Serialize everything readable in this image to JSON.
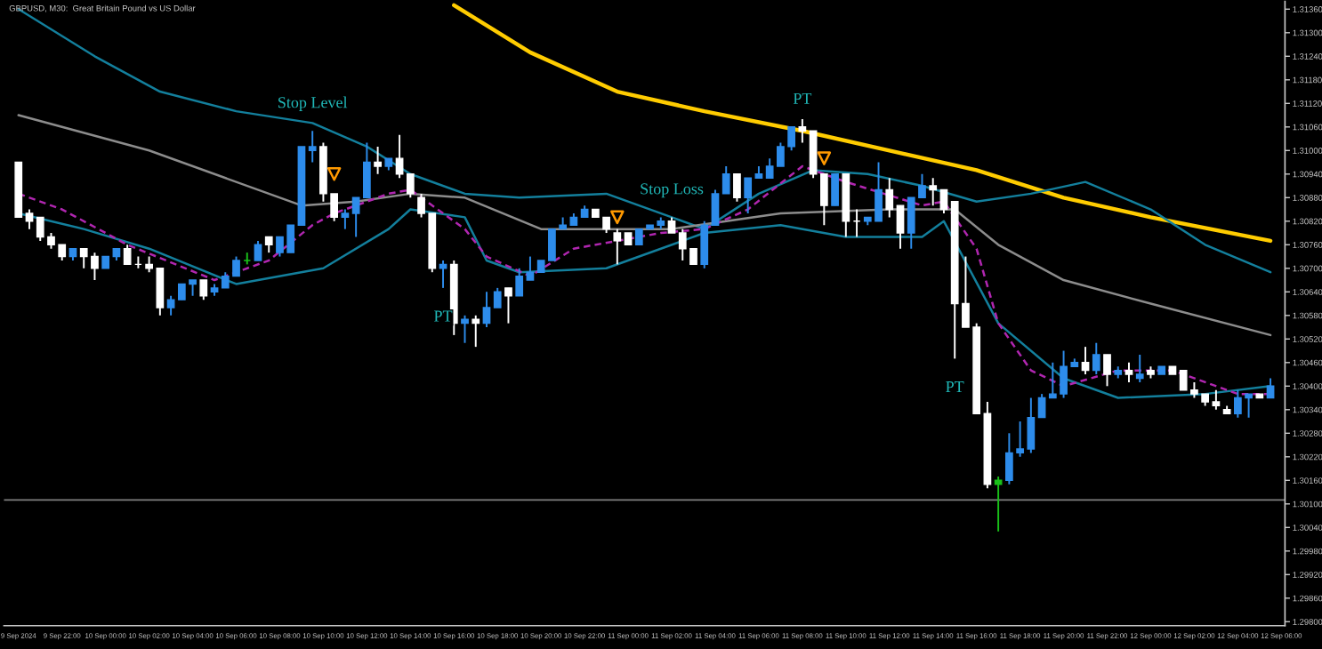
{
  "chart_data": {
    "type": "candlestick",
    "title": "GBPUSD, M30:  Great Britain Pound vs US Dollar",
    "x": [
      "2024-09-09T20:00",
      "2024-09-09T20:30",
      "2024-09-09T21:00",
      "2024-09-09T21:30",
      "2024-09-09T22:00",
      "2024-09-09T22:30",
      "2024-09-09T23:00",
      "2024-09-09T23:30",
      "2024-09-10T00:00",
      "2024-09-10T00:30",
      "2024-09-10T01:00",
      "2024-09-10T01:30",
      "2024-09-10T02:00",
      "2024-09-10T02:30",
      "2024-09-10T03:00",
      "2024-09-10T03:30",
      "2024-09-10T04:00",
      "2024-09-10T04:30",
      "2024-09-10T05:00",
      "2024-09-10T05:30",
      "2024-09-10T06:00",
      "2024-09-10T06:30",
      "2024-09-10T07:00",
      "2024-09-10T07:30",
      "2024-09-10T08:00",
      "2024-09-10T08:30",
      "2024-09-10T09:00",
      "2024-09-10T09:30",
      "2024-09-10T10:00",
      "2024-09-10T10:30",
      "2024-09-10T11:00",
      "2024-09-10T11:30",
      "2024-09-10T12:00",
      "2024-09-10T12:30",
      "2024-09-10T13:00",
      "2024-09-10T13:30",
      "2024-09-10T14:00",
      "2024-09-10T14:30",
      "2024-09-10T15:00",
      "2024-09-10T15:30",
      "2024-09-10T16:00",
      "2024-09-10T16:30",
      "2024-09-10T17:00",
      "2024-09-10T17:30",
      "2024-09-10T18:00",
      "2024-09-10T18:30",
      "2024-09-10T19:00",
      "2024-09-10T19:30",
      "2024-09-10T20:00",
      "2024-09-10T20:30",
      "2024-09-10T21:00",
      "2024-09-10T21:30",
      "2024-09-10T22:00",
      "2024-09-10T22:30",
      "2024-09-10T23:00",
      "2024-09-10T23:30",
      "2024-09-11T00:00",
      "2024-09-11T00:30",
      "2024-09-11T01:00",
      "2024-09-11T01:30",
      "2024-09-11T02:00",
      "2024-09-11T02:30",
      "2024-09-11T03:00",
      "2024-09-11T03:30",
      "2024-09-11T04:00",
      "2024-09-11T04:30",
      "2024-09-11T05:00",
      "2024-09-11T05:30",
      "2024-09-11T06:00",
      "2024-09-11T06:30",
      "2024-09-11T07:00",
      "2024-09-11T07:30",
      "2024-09-11T08:00",
      "2024-09-11T08:30",
      "2024-09-11T09:00",
      "2024-09-11T09:30",
      "2024-09-11T10:00",
      "2024-09-11T10:30",
      "2024-09-11T11:00",
      "2024-09-11T11:30",
      "2024-09-11T12:00",
      "2024-09-11T12:30",
      "2024-09-11T13:00",
      "2024-09-11T13:30",
      "2024-09-11T14:00",
      "2024-09-11T14:30",
      "2024-09-11T15:00",
      "2024-09-11T15:30",
      "2024-09-11T16:00",
      "2024-09-11T16:30",
      "2024-09-11T17:00",
      "2024-09-11T17:30",
      "2024-09-11T18:00",
      "2024-09-11T18:30",
      "2024-09-11T19:00",
      "2024-09-11T19:30",
      "2024-09-11T20:00",
      "2024-09-11T20:30",
      "2024-09-11T21:00",
      "2024-09-11T21:30",
      "2024-09-11T22:00",
      "2024-09-11T22:30",
      "2024-09-11T23:00",
      "2024-09-11T23:30",
      "2024-09-12T00:00",
      "2024-09-12T00:30",
      "2024-09-12T01:00",
      "2024-09-12T01:30",
      "2024-09-12T02:00",
      "2024-09-12T02:30",
      "2024-09-12T03:00",
      "2024-09-12T03:30",
      "2024-09-12T04:00",
      "2024-09-12T04:30",
      "2024-09-12T05:00",
      "2024-09-12T05:30"
    ],
    "ohlc": [
      [
        1.3097,
        1.3097,
        1.3083,
        1.3083
      ],
      [
        1.3084,
        1.3085,
        1.308,
        1.3082
      ],
      [
        1.3083,
        1.3083,
        1.3077,
        1.3078
      ],
      [
        1.3078,
        1.3079,
        1.3075,
        1.3076
      ],
      [
        1.3076,
        1.3076,
        1.3072,
        1.3073
      ],
      [
        1.3073,
        1.3075,
        1.3072,
        1.3075
      ],
      [
        1.3075,
        1.3075,
        1.307,
        1.3073
      ],
      [
        1.3073,
        1.3074,
        1.3067,
        1.307
      ],
      [
        1.307,
        1.3073,
        1.307,
        1.3073
      ],
      [
        1.3073,
        1.3075,
        1.3072,
        1.3075
      ],
      [
        1.3075,
        1.3076,
        1.3071,
        1.3071
      ],
      [
        1.3071,
        1.3073,
        1.307,
        1.3071
      ],
      [
        1.3071,
        1.3073,
        1.3069,
        1.307
      ],
      [
        1.307,
        1.307,
        1.3058,
        1.306
      ],
      [
        1.306,
        1.3063,
        1.3058,
        1.3062
      ],
      [
        1.3062,
        1.3066,
        1.3062,
        1.3066
      ],
      [
        1.3066,
        1.3067,
        1.3063,
        1.3067
      ],
      [
        1.3067,
        1.3067,
        1.3062,
        1.3063
      ],
      [
        1.3064,
        1.3066,
        1.3063,
        1.3065
      ],
      [
        1.3065,
        1.3069,
        1.3065,
        1.3068
      ],
      [
        1.3068,
        1.3073,
        1.3068,
        1.3072
      ],
      [
        1.3072,
        1.3074,
        1.3071,
        1.3072
      ],
      [
        1.3072,
        1.3077,
        1.3072,
        1.3076
      ],
      [
        1.3078,
        1.3078,
        1.3074,
        1.3076
      ],
      [
        1.3074,
        1.3078,
        1.3073,
        1.3078
      ],
      [
        1.3074,
        1.3081,
        1.3074,
        1.3081
      ],
      [
        1.3081,
        1.3101,
        1.3081,
        1.3101
      ],
      [
        1.31,
        1.3105,
        1.3097,
        1.3101
      ],
      [
        1.3101,
        1.3102,
        1.3087,
        1.3089
      ],
      [
        1.3089,
        1.3089,
        1.3082,
        1.3083
      ],
      [
        1.3083,
        1.3085,
        1.308,
        1.3084
      ],
      [
        1.3084,
        1.3088,
        1.3078,
        1.3088
      ],
      [
        1.3088,
        1.3102,
        1.3088,
        1.3097
      ],
      [
        1.3097,
        1.3101,
        1.3094,
        1.3096
      ],
      [
        1.3096,
        1.3098,
        1.3095,
        1.3098
      ],
      [
        1.3098,
        1.3104,
        1.3093,
        1.3094
      ],
      [
        1.3094,
        1.3094,
        1.3088,
        1.3089
      ],
      [
        1.3088,
        1.3089,
        1.3083,
        1.3084
      ],
      [
        1.3084,
        1.3084,
        1.3069,
        1.307
      ],
      [
        1.307,
        1.3072,
        1.3065,
        1.3071
      ],
      [
        1.3071,
        1.3072,
        1.3053,
        1.3056
      ],
      [
        1.3056,
        1.3058,
        1.3051,
        1.3057
      ],
      [
        1.3057,
        1.3058,
        1.305,
        1.3056
      ],
      [
        1.3056,
        1.3064,
        1.3055,
        1.306
      ],
      [
        1.306,
        1.3065,
        1.306,
        1.3064
      ],
      [
        1.3065,
        1.3065,
        1.3056,
        1.3063
      ],
      [
        1.3063,
        1.307,
        1.3063,
        1.3068
      ],
      [
        1.3067,
        1.3073,
        1.3067,
        1.3069
      ],
      [
        1.3069,
        1.3072,
        1.3069,
        1.3072
      ],
      [
        1.3072,
        1.308,
        1.3072,
        1.308
      ],
      [
        1.308,
        1.3083,
        1.308,
        1.3081
      ],
      [
        1.3081,
        1.3084,
        1.3081,
        1.3083
      ],
      [
        1.3083,
        1.3086,
        1.3083,
        1.3085
      ],
      [
        1.3085,
        1.3085,
        1.3083,
        1.3083
      ],
      [
        1.3083,
        1.3083,
        1.3079,
        1.308
      ],
      [
        1.3079,
        1.308,
        1.3071,
        1.3077
      ],
      [
        1.3079,
        1.3079,
        1.3076,
        1.3076
      ],
      [
        1.3076,
        1.308,
        1.3076,
        1.308
      ],
      [
        1.308,
        1.3081,
        1.308,
        1.3081
      ],
      [
        1.3081,
        1.3083,
        1.308,
        1.3082
      ],
      [
        1.3082,
        1.3083,
        1.3079,
        1.3079
      ],
      [
        1.3079,
        1.308,
        1.3072,
        1.3075
      ],
      [
        1.3075,
        1.3075,
        1.3071,
        1.3071
      ],
      [
        1.3071,
        1.3082,
        1.307,
        1.3081
      ],
      [
        1.3081,
        1.309,
        1.3081,
        1.3089
      ],
      [
        1.3089,
        1.3096,
        1.3089,
        1.3094
      ],
      [
        1.3094,
        1.3094,
        1.3087,
        1.3088
      ],
      [
        1.3088,
        1.3093,
        1.3084,
        1.3093
      ],
      [
        1.3093,
        1.3096,
        1.3093,
        1.3094
      ],
      [
        1.3093,
        1.3098,
        1.3093,
        1.3096
      ],
      [
        1.3096,
        1.3102,
        1.3096,
        1.3101
      ],
      [
        1.3101,
        1.3106,
        1.31,
        1.3106
      ],
      [
        1.3106,
        1.3108,
        1.3102,
        1.3105
      ],
      [
        1.3105,
        1.3105,
        1.3093,
        1.3094
      ],
      [
        1.3094,
        1.3094,
        1.3081,
        1.3086
      ],
      [
        1.3086,
        1.3094,
        1.3086,
        1.3094
      ],
      [
        1.3094,
        1.3094,
        1.3078,
        1.3082
      ],
      [
        1.3082,
        1.3085,
        1.3078,
        1.3082
      ],
      [
        1.3082,
        1.3083,
        1.3081,
        1.3083
      ],
      [
        1.3082,
        1.3097,
        1.3082,
        1.309
      ],
      [
        1.309,
        1.3093,
        1.3083,
        1.3085
      ],
      [
        1.3086,
        1.3086,
        1.3075,
        1.3079
      ],
      [
        1.3079,
        1.3088,
        1.3075,
        1.3088
      ],
      [
        1.3088,
        1.3094,
        1.3088,
        1.3091
      ],
      [
        1.3091,
        1.3093,
        1.3086,
        1.309
      ],
      [
        1.309,
        1.309,
        1.3084,
        1.3085
      ],
      [
        1.3087,
        1.3087,
        1.3047,
        1.3061
      ],
      [
        1.3061,
        1.3073,
        1.3055,
        1.3055
      ],
      [
        1.3055,
        1.3056,
        1.3033,
        1.3033
      ],
      [
        1.3033,
        1.3036,
        1.3014,
        1.3015
      ],
      [
        1.3015,
        1.3017,
        1.3003,
        1.3016
      ],
      [
        1.3016,
        1.3028,
        1.3015,
        1.3023
      ],
      [
        1.3023,
        1.3031,
        1.3022,
        1.3024
      ],
      [
        1.3024,
        1.3037,
        1.3023,
        1.3032
      ],
      [
        1.3032,
        1.3038,
        1.3032,
        1.3037
      ],
      [
        1.3037,
        1.3046,
        1.3037,
        1.3038
      ],
      [
        1.3038,
        1.3049,
        1.3037,
        1.3045
      ],
      [
        1.3045,
        1.3047,
        1.3045,
        1.3046
      ],
      [
        1.3046,
        1.305,
        1.3043,
        1.3044
      ],
      [
        1.3044,
        1.3051,
        1.3043,
        1.3048
      ],
      [
        1.3048,
        1.3048,
        1.304,
        1.3043
      ],
      [
        1.3043,
        1.3045,
        1.3042,
        1.3044
      ],
      [
        1.3044,
        1.3046,
        1.3041,
        1.3043
      ],
      [
        1.3042,
        1.3048,
        1.3041,
        1.3043
      ],
      [
        1.3044,
        1.3045,
        1.3042,
        1.3043
      ],
      [
        1.3043,
        1.3045,
        1.3043,
        1.3045
      ],
      [
        1.3045,
        1.3045,
        1.3043,
        1.3043
      ],
      [
        1.3044,
        1.3044,
        1.3039,
        1.3039
      ],
      [
        1.3039,
        1.3041,
        1.3037,
        1.3038
      ],
      [
        1.3038,
        1.3038,
        1.3035,
        1.3036
      ],
      [
        1.3036,
        1.3039,
        1.3034,
        1.3035
      ],
      [
        1.3034,
        1.3035,
        1.3033,
        1.3033
      ],
      [
        1.3033,
        1.3039,
        1.3032,
        1.3037
      ],
      [
        1.3037,
        1.3038,
        1.3032,
        1.3038
      ],
      [
        1.3038,
        1.3038,
        1.3037,
        1.3037
      ],
      [
        1.3037,
        1.3042,
        1.3037,
        1.304
      ]
    ],
    "colors": [
      "#ffffff",
      "#ffffff",
      "#ffffff",
      "#ffffff",
      "#ffffff",
      "#2d8ceb",
      "#ffffff",
      "#ffffff",
      "#2d8ceb",
      "#2d8ceb",
      "#ffffff",
      "#ffffff",
      "#ffffff",
      "#ffffff",
      "#2d8ceb",
      "#2d8ceb",
      "#2d8ceb",
      "#ffffff",
      "#2d8ceb",
      "#2d8ceb",
      "#2d8ceb",
      "#19c019",
      "#2d8ceb",
      "#ffffff",
      "#2d8ceb",
      "#2d8ceb",
      "#2d8ceb",
      "#2d8ceb",
      "#ffffff",
      "#ffffff",
      "#2d8ceb",
      "#2d8ceb",
      "#2d8ceb",
      "#ffffff",
      "#2d8ceb",
      "#ffffff",
      "#ffffff",
      "#ffffff",
      "#ffffff",
      "#2d8ceb",
      "#ffffff",
      "#2d8ceb",
      "#ffffff",
      "#2d8ceb",
      "#2d8ceb",
      "#ffffff",
      "#2d8ceb",
      "#2d8ceb",
      "#2d8ceb",
      "#2d8ceb",
      "#2d8ceb",
      "#2d8ceb",
      "#2d8ceb",
      "#ffffff",
      "#ffffff",
      "#ffffff",
      "#ffffff",
      "#2d8ceb",
      "#2d8ceb",
      "#2d8ceb",
      "#ffffff",
      "#ffffff",
      "#ffffff",
      "#2d8ceb",
      "#2d8ceb",
      "#2d8ceb",
      "#ffffff",
      "#2d8ceb",
      "#2d8ceb",
      "#2d8ceb",
      "#2d8ceb",
      "#2d8ceb",
      "#ffffff",
      "#ffffff",
      "#ffffff",
      "#2d8ceb",
      "#ffffff",
      "#ffffff",
      "#2d8ceb",
      "#2d8ceb",
      "#ffffff",
      "#ffffff",
      "#2d8ceb",
      "#2d8ceb",
      "#ffffff",
      "#ffffff",
      "#ffffff",
      "#ffffff",
      "#ffffff",
      "#ffffff",
      "#19c019",
      "#2d8ceb",
      "#2d8ceb",
      "#2d8ceb",
      "#2d8ceb",
      "#2d8ceb",
      "#2d8ceb",
      "#2d8ceb",
      "#ffffff",
      "#2d8ceb",
      "#ffffff",
      "#2d8ceb",
      "#ffffff",
      "#2d8ceb",
      "#ffffff",
      "#2d8ceb",
      "#ffffff",
      "#ffffff",
      "#ffffff",
      "#ffffff",
      "#ffffff",
      "#ffffff",
      "#2d8ceb",
      "#2d8ceb",
      "#ffffff",
      "#2d8ceb"
    ],
    "series": [
      {
        "type": "line",
        "color": "#ffcc00",
        "x": [
          "2024-09-10T16:00",
          "2024-09-10T19:30",
          "2024-09-10T23:30",
          "2024-09-11T03:30",
          "2024-09-11T08:00",
          "2024-09-11T12:00",
          "2024-09-11T16:00",
          "2024-09-11T20:00",
          "2024-09-12T00:00",
          "2024-09-12T05:30"
        ],
        "values": [
          1.3137,
          1.3125,
          1.3115,
          1.311,
          1.3105,
          1.31,
          1.3095,
          1.3088,
          1.3083,
          1.3077
        ]
      },
      {
        "type": "line",
        "color": "#137f9c",
        "x": [
          "2024-09-09T20:00",
          "2024-09-09T23:30",
          "2024-09-10T02:30",
          "2024-09-10T06:00",
          "2024-09-10T09:30",
          "2024-09-10T12:00",
          "2024-09-10T14:00",
          "2024-09-10T16:30",
          "2024-09-10T19:00",
          "2024-09-10T23:00",
          "2024-09-11T02:00",
          "2024-09-11T03:30",
          "2024-09-11T06:00",
          "2024-09-11T08:30",
          "2024-09-11T11:00",
          "2024-09-11T13:30",
          "2024-09-11T16:00",
          "2024-09-11T18:30",
          "2024-09-11T21:00",
          "2024-09-12T00:00",
          "2024-09-12T02:30",
          "2024-09-12T05:30"
        ],
        "values": [
          1.3136,
          1.3124,
          1.3115,
          1.311,
          1.3107,
          1.3101,
          1.3094,
          1.3089,
          1.3088,
          1.3089,
          1.3083,
          1.308,
          1.3089,
          1.3095,
          1.3094,
          1.3091,
          1.3087,
          1.3089,
          1.3092,
          1.3085,
          1.3076,
          1.3069
        ]
      },
      {
        "type": "line",
        "color": "#137f9c",
        "x": [
          "2024-09-09T20:00",
          "2024-09-09T23:00",
          "2024-09-10T02:00",
          "2024-09-10T06:00",
          "2024-09-10T10:00",
          "2024-09-10T13:00",
          "2024-09-10T14:00",
          "2024-09-10T16:30",
          "2024-09-10T17:30",
          "2024-09-10T19:00",
          "2024-09-10T23:00",
          "2024-09-11T03:30",
          "2024-09-11T07:00",
          "2024-09-11T10:00",
          "2024-09-11T13:30",
          "2024-09-11T14:30",
          "2024-09-11T17:00",
          "2024-09-11T20:00",
          "2024-09-11T22:30",
          "2024-09-12T02:30",
          "2024-09-12T05:30"
        ],
        "values": [
          1.3084,
          1.308,
          1.3075,
          1.3066,
          1.307,
          1.308,
          1.3085,
          1.3083,
          1.3072,
          1.3069,
          1.307,
          1.3079,
          1.3081,
          1.3078,
          1.3078,
          1.3082,
          1.3056,
          1.3042,
          1.3037,
          1.3038,
          1.304
        ]
      },
      {
        "type": "line",
        "color": "#8c8c8c",
        "x": [
          "2024-09-09T20:00",
          "2024-09-10T02:00",
          "2024-09-10T09:00",
          "2024-09-10T11:30",
          "2024-09-10T14:00",
          "2024-09-10T16:30",
          "2024-09-10T20:00",
          "2024-09-11T02:00",
          "2024-09-11T07:00",
          "2024-09-11T12:00",
          "2024-09-11T15:00",
          "2024-09-11T17:00",
          "2024-09-11T20:00",
          "2024-09-12T00:00",
          "2024-09-12T05:30"
        ],
        "values": [
          1.3109,
          1.31,
          1.3086,
          1.3087,
          1.3089,
          1.3088,
          1.308,
          1.308,
          1.3084,
          1.3085,
          1.3085,
          1.3076,
          1.3067,
          1.3061,
          1.3053
        ]
      },
      {
        "type": "line",
        "color": "#b026b0",
        "line_style": "dashed",
        "x": [
          "2024-09-09T20:00",
          "2024-09-09T22:00",
          "2024-09-10T01:00",
          "2024-09-10T05:00",
          "2024-09-10T07:30",
          "2024-09-10T09:30",
          "2024-09-10T10:30",
          "2024-09-10T13:00",
          "2024-09-10T14:00",
          "2024-09-10T16:30",
          "2024-09-10T17:30",
          "2024-09-10T19:30",
          "2024-09-10T21:30",
          "2024-09-11T01:30",
          "2024-09-11T03:30",
          "2024-09-11T05:30",
          "2024-09-11T08:00",
          "2024-09-11T10:00",
          "2024-09-11T13:30",
          "2024-09-11T14:30",
          "2024-09-11T16:00",
          "2024-09-11T17:00",
          "2024-09-11T18:30",
          "2024-09-11T20:00",
          "2024-09-11T22:30",
          "2024-09-12T01:00",
          "2024-09-12T04:00",
          "2024-09-12T05:30"
        ],
        "values": [
          1.3089,
          1.3085,
          1.3076,
          1.3067,
          1.3072,
          1.3081,
          1.3084,
          1.3089,
          1.309,
          1.308,
          1.3073,
          1.3068,
          1.3075,
          1.3079,
          1.308,
          1.3085,
          1.3096,
          1.3092,
          1.3086,
          1.3087,
          1.3075,
          1.3056,
          1.3044,
          1.304,
          1.3044,
          1.3044,
          1.3038,
          1.3038
        ]
      },
      {
        "type": "scatter",
        "color": "#ff9900",
        "marker": "triangle",
        "x": [
          "2024-09-10T10:30",
          "2024-09-10T23:30",
          "2024-09-11T09:00"
        ],
        "values": [
          1.3094,
          1.3083,
          1.3098
        ]
      }
    ],
    "annotations": [
      {
        "text": "Stop Level",
        "x": "2024-09-10T09:30",
        "y": 1.3105
      },
      {
        "text": "PT",
        "x": "2024-09-10T15:30",
        "y": 1.3065
      },
      {
        "text": "Stop Loss",
        "x": "2024-09-11T02:00",
        "y": 1.3083
      },
      {
        "text": "PT",
        "x": "2024-09-11T08:00",
        "y": 1.3106
      },
      {
        "text": "PT",
        "x": "2024-09-11T15:00",
        "y": 1.3047
      }
    ],
    "ref_lines": [
      {
        "axis": "y",
        "value": 1.3011,
        "label": null,
        "color": "#808080"
      }
    ],
    "xlim": [
      "2024-09-09T19:20",
      "2024-09-12T06:10"
    ],
    "xticks": [
      {
        "value": "2024-09-09T20:00",
        "label": "9 Sep 2024"
      },
      {
        "value": "2024-09-09T22:00",
        "label": "9 Sep 22:00"
      },
      {
        "value": "2024-09-10T00:00",
        "label": "10 Sep 00:00"
      },
      {
        "value": "2024-09-10T02:00",
        "label": "10 Sep 02:00"
      },
      {
        "value": "2024-09-10T04:00",
        "label": "10 Sep 04:00"
      },
      {
        "value": "2024-09-10T06:00",
        "label": "10 Sep 06:00"
      },
      {
        "value": "2024-09-10T08:00",
        "label": "10 Sep 08:00"
      },
      {
        "value": "2024-09-10T10:00",
        "label": "10 Sep 10:00"
      },
      {
        "value": "2024-09-10T12:00",
        "label": "10 Sep 12:00"
      },
      {
        "value": "2024-09-10T14:00",
        "label": "10 Sep 14:00"
      },
      {
        "value": "2024-09-10T16:00",
        "label": "10 Sep 16:00"
      },
      {
        "value": "2024-09-10T18:00",
        "label": "10 Sep 18:00"
      },
      {
        "value": "2024-09-10T20:00",
        "label": "10 Sep 20:00"
      },
      {
        "value": "2024-09-10T22:00",
        "label": "10 Sep 22:00"
      },
      {
        "value": "2024-09-11T00:00",
        "label": "11 Sep 00:00"
      },
      {
        "value": "2024-09-11T02:00",
        "label": "11 Sep 02:00"
      },
      {
        "value": "2024-09-11T04:00",
        "label": "11 Sep 04:00"
      },
      {
        "value": "2024-09-11T06:00",
        "label": "11 Sep 06:00"
      },
      {
        "value": "2024-09-11T08:00",
        "label": "11 Sep 08:00"
      },
      {
        "value": "2024-09-11T10:00",
        "label": "11 Sep 10:00"
      },
      {
        "value": "2024-09-11T12:00",
        "label": "11 Sep 12:00"
      },
      {
        "value": "2024-09-11T14:00",
        "label": "11 Sep 14:00"
      },
      {
        "value": "2024-09-11T16:00",
        "label": "11 Sep 16:00"
      },
      {
        "value": "2024-09-11T18:00",
        "label": "11 Sep 18:00"
      },
      {
        "value": "2024-09-11T20:00",
        "label": "11 Sep 20:00"
      },
      {
        "value": "2024-09-11T22:00",
        "label": "11 Sep 22:00"
      },
      {
        "value": "2024-09-12T00:00",
        "label": "12 Sep 00:00"
      },
      {
        "value": "2024-09-12T02:00",
        "label": "12 Sep 02:00"
      },
      {
        "value": "2024-09-12T04:00",
        "label": "12 Sep 04:00"
      },
      {
        "value": "2024-09-12T06:00",
        "label": "12 Sep 06:00"
      }
    ],
    "ylim": [
      1.2979,
      1.3138
    ],
    "yticks": [
      {
        "value": 1.3136,
        "label": "1.31360"
      },
      {
        "value": 1.313,
        "label": "1.31300"
      },
      {
        "value": 1.3124,
        "label": "1.31240"
      },
      {
        "value": 1.3118,
        "label": "1.31180"
      },
      {
        "value": 1.3112,
        "label": "1.31120"
      },
      {
        "value": 1.3106,
        "label": "1.31060"
      },
      {
        "value": 1.31,
        "label": "1.31000"
      },
      {
        "value": 1.3094,
        "label": "1.30940"
      },
      {
        "value": 1.3088,
        "label": "1.30880"
      },
      {
        "value": 1.3082,
        "label": "1.30820"
      },
      {
        "value": 1.3076,
        "label": "1.30760"
      },
      {
        "value": 1.307,
        "label": "1.30700"
      },
      {
        "value": 1.3064,
        "label": "1.30640"
      },
      {
        "value": 1.3058,
        "label": "1.30580"
      },
      {
        "value": 1.3052,
        "label": "1.30520"
      },
      {
        "value": 1.3046,
        "label": "1.30460"
      },
      {
        "value": 1.304,
        "label": "1.30400"
      },
      {
        "value": 1.3034,
        "label": "1.30340"
      },
      {
        "value": 1.3028,
        "label": "1.30280"
      },
      {
        "value": 1.3022,
        "label": "1.30220"
      },
      {
        "value": 1.3016,
        "label": "1.30160"
      },
      {
        "value": 1.301,
        "label": "1.30100"
      },
      {
        "value": 1.3004,
        "label": "1.30040"
      },
      {
        "value": 1.2998,
        "label": "1.29980"
      },
      {
        "value": 1.2992,
        "label": "1.29920"
      },
      {
        "value": 1.2986,
        "label": "1.29860"
      },
      {
        "value": 1.298,
        "label": "1.29800"
      }
    ]
  }
}
